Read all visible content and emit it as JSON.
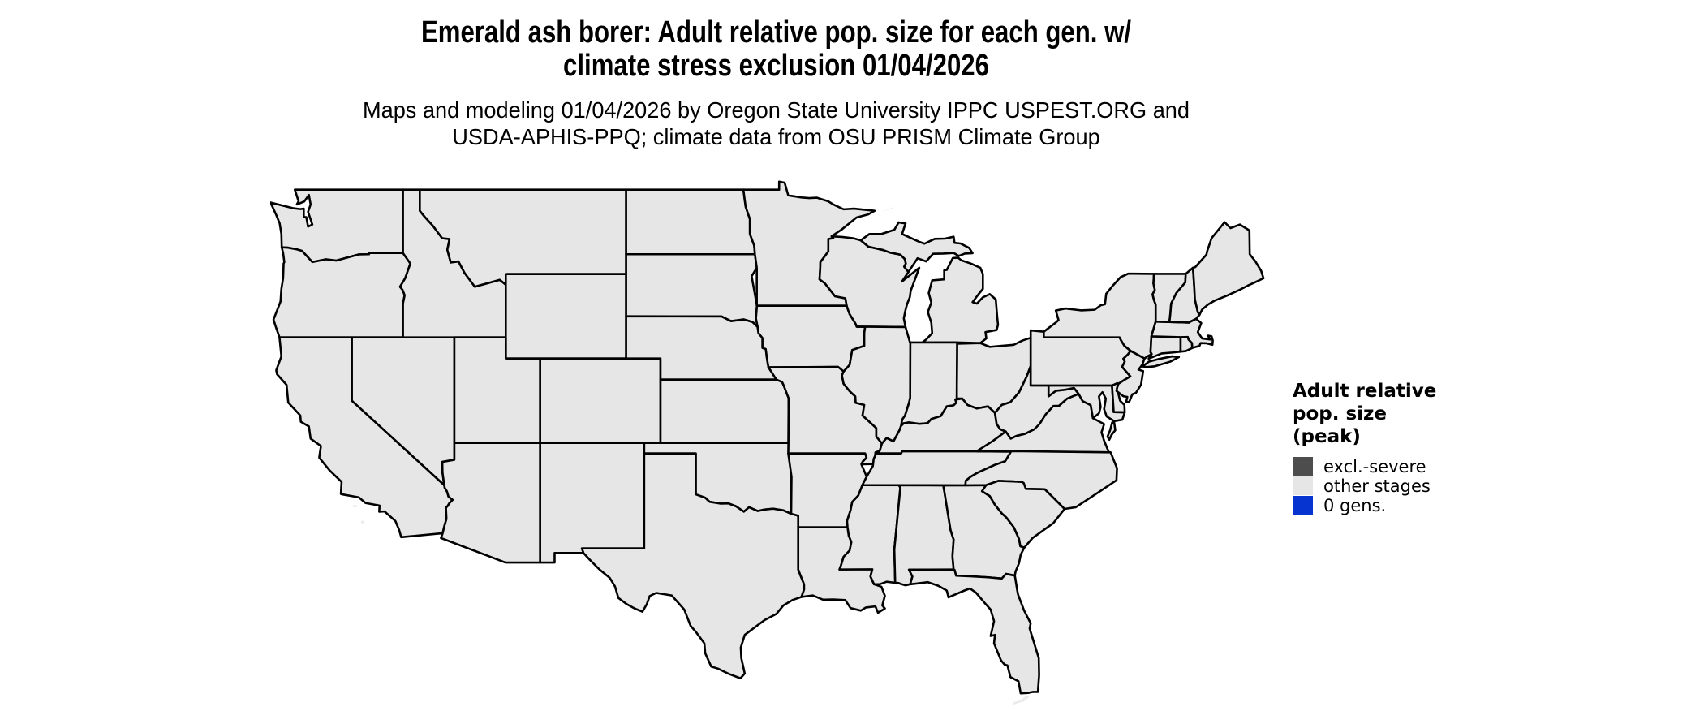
{
  "title": {
    "line1": "Emerald ash borer: Adult relative pop. size for each gen. w/",
    "line2": "climate stress exclusion 01/04/2026"
  },
  "subtitle": {
    "line1": "Maps and modeling 01/04/2026 by Oregon State University IPPC USPEST.ORG and",
    "line2": "USDA-APHIS-PPQ; climate data from OSU PRISM Climate Group"
  },
  "legend": {
    "title_lines": [
      "Adult relative",
      "pop. size",
      "(peak)"
    ],
    "items": [
      {
        "label": "excl.-severe",
        "color": "#4d4d4d"
      },
      {
        "label": "other stages",
        "color": "#e6e6e6"
      },
      {
        "label": "0 gens.",
        "color": "#0534d0"
      }
    ]
  },
  "map": {
    "region": "contiguous United States",
    "depicted_status": "all states shown in the 'other stages' color",
    "fill_color": "#e6e6e6",
    "border_color": "#000000",
    "background_color": "#ffffff"
  }
}
